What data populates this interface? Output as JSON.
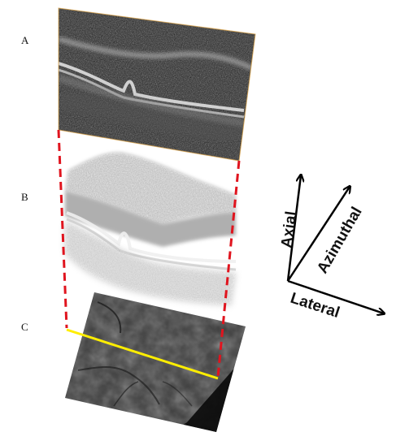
{
  "panels": {
    "a": "A",
    "b": "B",
    "c": "C"
  },
  "axes": {
    "axial": "Axial",
    "azimuthal": "Azimuthal",
    "lateral": "Lateral"
  },
  "colors": {
    "projection_lines": "#e0141e",
    "scan_line": "#ffee00",
    "axes": "#000000"
  }
}
